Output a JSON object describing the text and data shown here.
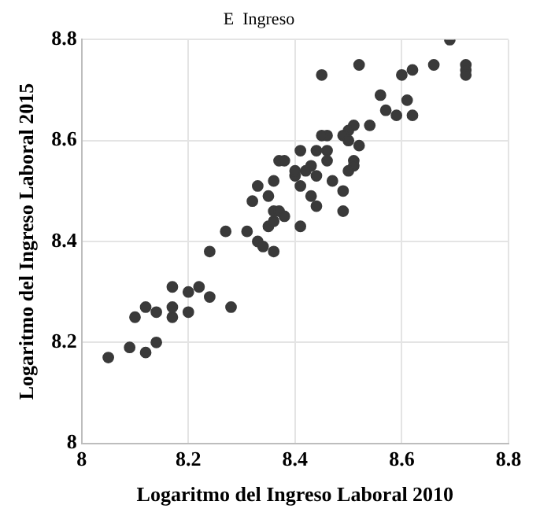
{
  "chart_data": {
    "type": "scatter",
    "title": "E  Ingreso",
    "xlabel": "Logaritmo del Ingreso Laboral 2010",
    "ylabel": "Logaritmo del Ingreso Laboral 2015",
    "x": [
      8.05,
      8.09,
      8.12,
      8.14,
      8.1,
      8.12,
      8.14,
      8.17,
      8.17,
      8.17,
      8.2,
      8.2,
      8.22,
      8.24,
      8.24,
      8.28,
      8.33,
      8.34,
      8.36,
      8.27,
      8.31,
      8.35,
      8.36,
      8.36,
      8.37,
      8.38,
      8.32,
      8.35,
      8.33,
      8.36,
      8.37,
      8.38,
      8.4,
      8.4,
      8.41,
      8.41,
      8.41,
      8.69,
      8.72,
      8.72,
      8.72,
      8.66,
      8.62,
      8.6,
      8.45,
      8.52,
      8.56,
      8.61,
      8.57,
      8.59,
      8.62,
      8.54,
      8.51,
      8.5,
      8.49,
      8.5,
      8.46,
      8.45,
      8.52,
      8.44,
      8.46,
      8.46,
      8.51,
      8.51,
      8.5,
      8.43,
      8.42,
      8.44,
      8.47,
      8.49,
      8.43,
      8.44,
      8.49
    ],
    "values": [
      8.17,
      8.19,
      8.18,
      8.2,
      8.25,
      8.27,
      8.26,
      8.25,
      8.27,
      8.31,
      8.3,
      8.26,
      8.31,
      8.29,
      8.38,
      8.27,
      8.4,
      8.39,
      8.38,
      8.42,
      8.42,
      8.43,
      8.44,
      8.46,
      8.46,
      8.45,
      8.48,
      8.49,
      8.51,
      8.52,
      8.56,
      8.56,
      8.53,
      8.54,
      8.58,
      8.51,
      8.43,
      8.8,
      8.75,
      8.74,
      8.73,
      8.75,
      8.74,
      8.73,
      8.73,
      8.75,
      8.69,
      8.68,
      8.66,
      8.65,
      8.65,
      8.63,
      8.63,
      8.62,
      8.61,
      8.6,
      8.61,
      8.61,
      8.59,
      8.58,
      8.58,
      8.56,
      8.56,
      8.55,
      8.54,
      8.55,
      8.54,
      8.53,
      8.52,
      8.5,
      8.49,
      8.47,
      8.46
    ],
    "color": "#3a3a3a",
    "marker": "circle",
    "xlim": [
      8,
      8.8
    ],
    "xticks": [
      8,
      8.2,
      8.4,
      8.6,
      8.8
    ],
    "ylim": [
      8,
      8.8
    ],
    "yticks": [
      8,
      8.2,
      8.4,
      8.6,
      8.8
    ],
    "grid": true,
    "legend": false
  }
}
